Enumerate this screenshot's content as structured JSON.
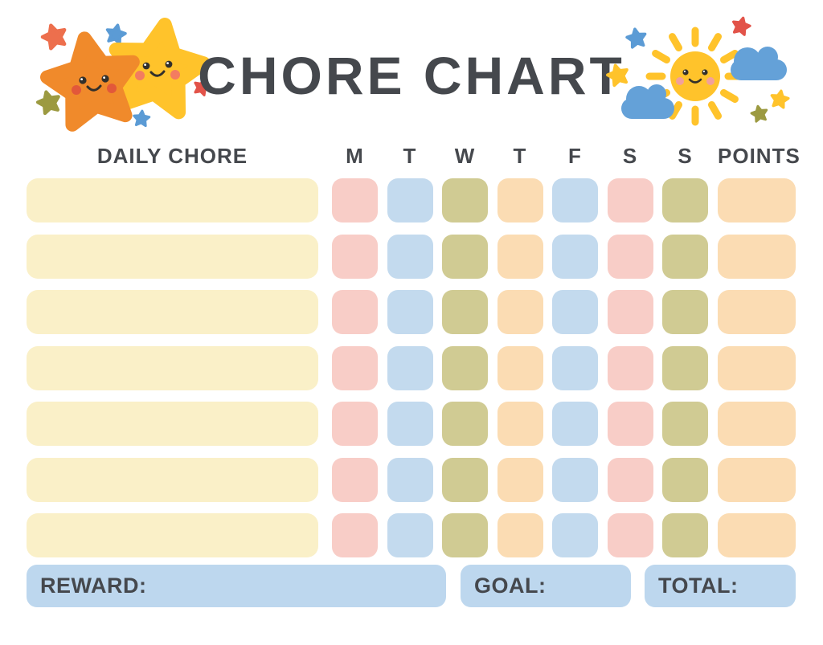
{
  "title": "CHORE CHART",
  "colors": {
    "text": "#45484d",
    "cream": "#faf0c8",
    "pink": "#f8cdc7",
    "blue": "#c3daee",
    "olive": "#d0cb93",
    "peach": "#fbdcb3",
    "footer_blue": "#bdd7ee"
  },
  "header": {
    "chore_label": "DAILY CHORE",
    "days": [
      "M",
      "T",
      "W",
      "T",
      "F",
      "S",
      "S"
    ],
    "points_label": "POINTS"
  },
  "grid": {
    "day_pattern_note": "color name per weekday cell, identical every row",
    "rows": [
      {
        "chore": "",
        "days": [
          "pink",
          "blue",
          "olive",
          "peach",
          "blue",
          "pink",
          "olive"
        ],
        "points_color": "peach",
        "points": ""
      },
      {
        "chore": "",
        "days": [
          "pink",
          "blue",
          "olive",
          "peach",
          "blue",
          "pink",
          "olive"
        ],
        "points_color": "peach",
        "points": ""
      },
      {
        "chore": "",
        "days": [
          "pink",
          "blue",
          "olive",
          "peach",
          "blue",
          "pink",
          "olive"
        ],
        "points_color": "peach",
        "points": ""
      },
      {
        "chore": "",
        "days": [
          "pink",
          "blue",
          "olive",
          "peach",
          "blue",
          "pink",
          "olive"
        ],
        "points_color": "peach",
        "points": ""
      },
      {
        "chore": "",
        "days": [
          "pink",
          "blue",
          "olive",
          "peach",
          "blue",
          "pink",
          "olive"
        ],
        "points_color": "peach",
        "points": ""
      },
      {
        "chore": "",
        "days": [
          "pink",
          "blue",
          "olive",
          "peach",
          "blue",
          "pink",
          "olive"
        ],
        "points_color": "peach",
        "points": ""
      },
      {
        "chore": "",
        "days": [
          "pink",
          "blue",
          "olive",
          "peach",
          "blue",
          "pink",
          "olive"
        ],
        "points_color": "peach",
        "points": ""
      }
    ]
  },
  "footer": {
    "reward_label": "REWARD:",
    "reward_value": "",
    "goal_label": "GOAL:",
    "goal_value": "",
    "total_label": "TOTAL:",
    "total_value": ""
  },
  "decorations": {
    "colors": {
      "big_orange_star": "#f08a2b",
      "big_yellow_star": "#ffc32b",
      "small_orange_star": "#ed6f4d",
      "small_blue_star": "#5b9bd5",
      "small_olive_star": "#9c9a41",
      "small_red_star": "#e25349",
      "small_yellow_star": "#ffc32b",
      "sun": "#ffc32b",
      "cloud": "#64a1d8",
      "face": "#33302b",
      "orange_star_cheek": "#e2583a",
      "yellow_star_cheek": "#f37c60",
      "sun_cheek": "#f2a09b"
    }
  }
}
